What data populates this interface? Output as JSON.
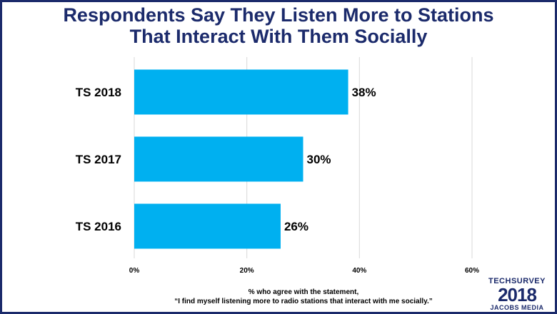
{
  "title_line1": "Respondents Say They Listen More to Stations",
  "title_line2": "That Interact With Them Socially",
  "chart_data": {
    "type": "bar",
    "orientation": "horizontal",
    "categories": [
      "TS 2018",
      "TS 2017",
      "TS 2016"
    ],
    "values": [
      38,
      30,
      26
    ],
    "data_labels": [
      "38%",
      "30%",
      "26%"
    ],
    "xlim": [
      0,
      60
    ],
    "x_ticks": [
      0,
      20,
      40,
      60
    ],
    "x_tick_labels": [
      "0%",
      "20%",
      "40%",
      "60%"
    ],
    "grid": true,
    "bar_color": "#00b0f0",
    "caption_line1": "% who agree with the statement,",
    "caption_line2": "“I find myself listening more to radio stations that interact with me socially.”"
  },
  "logo": {
    "line1": "TECHSURVEY",
    "line2": "2018",
    "line3": "JACOBS MEDIA"
  },
  "colors": {
    "title": "#1b2a6b",
    "border": "#1b2a6b",
    "bar": "#00b0f0",
    "grid": "#d9d9d9"
  }
}
